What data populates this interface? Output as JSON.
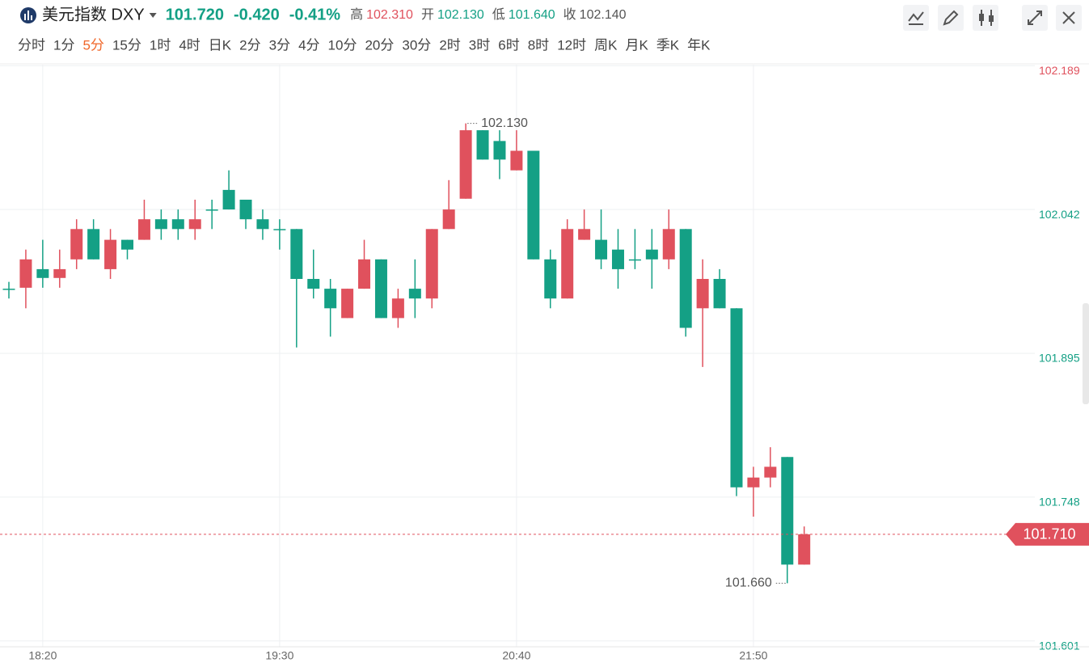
{
  "header": {
    "title": "美元指数 DXY",
    "price": "101.720",
    "change": "-0.420",
    "change_pct": "-0.41%",
    "stats": [
      {
        "label": "高",
        "value": "102.310"
      },
      {
        "label": "开",
        "value": "102.130"
      },
      {
        "label": "低",
        "value": "101.640"
      },
      {
        "label": "收",
        "value": "102.140"
      }
    ],
    "tabs": [
      "分时",
      "1分",
      "5分",
      "15分",
      "1时",
      "4时",
      "日K",
      "2分",
      "3分",
      "4分",
      "10分",
      "20分",
      "30分",
      "2时",
      "3时",
      "6时",
      "8时",
      "12时",
      "周K",
      "月K",
      "季K",
      "年K"
    ],
    "active_tab_index": 2
  },
  "chart_data": {
    "type": "candlestick",
    "categories": [
      null,
      null,
      "18:20",
      null,
      null,
      null,
      null,
      null,
      null,
      null,
      null,
      null,
      null,
      null,
      null,
      null,
      "19:30",
      null,
      null,
      null,
      null,
      null,
      null,
      null,
      null,
      null,
      null,
      null,
      null,
      null,
      "20:40",
      null,
      null,
      null,
      null,
      null,
      null,
      null,
      null,
      null,
      null,
      null,
      null,
      null,
      "21:50",
      null,
      null,
      null
    ],
    "open": [
      101.961,
      101.962,
      101.981,
      101.972,
      101.991,
      102.022,
      101.981,
      102.011,
      102.011,
      102.032,
      102.032,
      102.022,
      102.042,
      102.062,
      102.052,
      102.032,
      102.022,
      102.022,
      101.971,
      101.961,
      101.931,
      101.961,
      101.991,
      101.931,
      101.961,
      101.951,
      102.022,
      102.053,
      102.123,
      102.112,
      102.082,
      102.102,
      101.991,
      101.951,
      102.011,
      102.011,
      102.001,
      101.991,
      102.001,
      101.991,
      102.022,
      101.941,
      101.971,
      101.941,
      101.758,
      101.768,
      101.789,
      101.679
    ],
    "high": [
      101.968,
      102.001,
      102.011,
      102.001,
      102.032,
      102.032,
      102.022,
      102.011,
      102.052,
      102.042,
      102.042,
      102.052,
      102.052,
      102.082,
      102.052,
      102.042,
      102.032,
      102.022,
      102.001,
      101.971,
      101.961,
      102.011,
      101.991,
      101.961,
      101.991,
      102.022,
      102.072,
      102.13,
      102.123,
      102.123,
      102.123,
      102.102,
      102.001,
      102.032,
      102.042,
      102.042,
      102.022,
      102.022,
      102.022,
      102.042,
      102.022,
      101.991,
      101.981,
      101.941,
      101.779,
      101.799,
      101.789,
      101.718
    ],
    "low": [
      101.951,
      101.941,
      101.962,
      101.962,
      101.981,
      101.991,
      101.971,
      101.991,
      102.011,
      102.011,
      102.011,
      102.011,
      102.022,
      102.042,
      102.022,
      102.011,
      102.001,
      101.901,
      101.951,
      101.912,
      101.931,
      101.961,
      101.931,
      101.921,
      101.931,
      101.941,
      102.022,
      102.053,
      102.093,
      102.073,
      102.082,
      101.991,
      101.941,
      101.951,
      102.011,
      101.981,
      101.961,
      101.981,
      101.961,
      101.981,
      101.912,
      101.881,
      101.941,
      101.749,
      101.728,
      101.758,
      101.66,
      101.679
    ],
    "close": [
      101.961,
      101.991,
      101.972,
      101.981,
      102.022,
      101.991,
      102.011,
      102.001,
      102.032,
      102.022,
      102.022,
      102.032,
      102.042,
      102.042,
      102.032,
      102.022,
      102.022,
      101.971,
      101.961,
      101.941,
      101.961,
      101.991,
      101.931,
      101.951,
      101.951,
      102.022,
      102.042,
      102.123,
      102.093,
      102.093,
      102.102,
      101.991,
      101.951,
      102.022,
      102.022,
      101.991,
      101.981,
      101.991,
      101.991,
      102.022,
      101.921,
      101.971,
      101.941,
      101.758,
      101.768,
      101.779,
      101.679,
      101.71
    ],
    "up_color": "#e0515d",
    "down_color": "#14a085",
    "ylim": [
      101.595,
      102.19
    ],
    "yticks": [
      102.189,
      102.042,
      101.895,
      101.748,
      101.601
    ],
    "grid": true,
    "high_label": "102.130",
    "low_label": "101.660",
    "last_label": "101.710"
  }
}
